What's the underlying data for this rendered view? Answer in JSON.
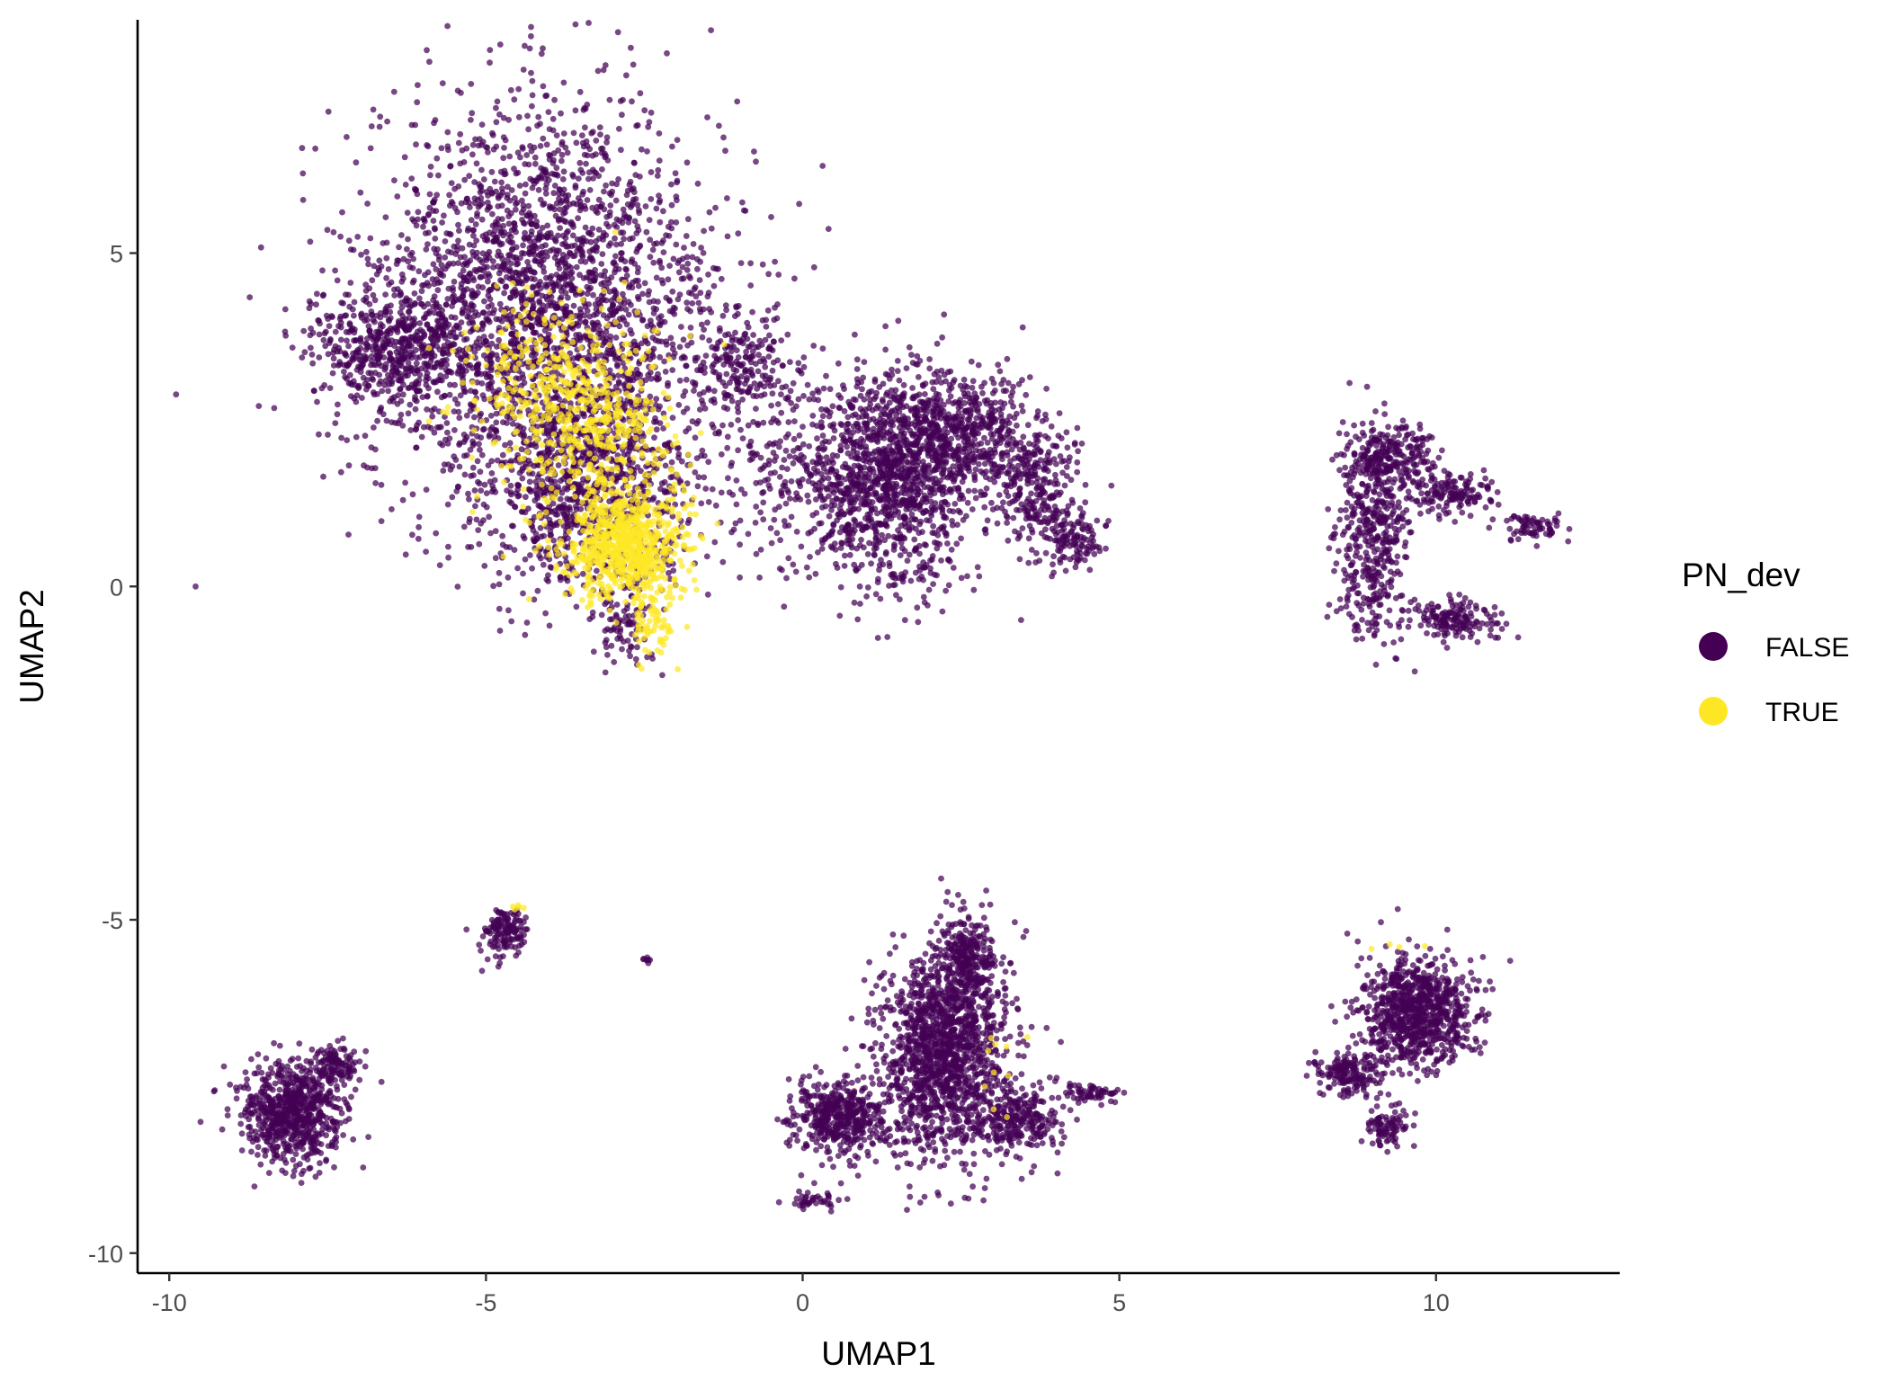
{
  "chart_data": {
    "type": "scatter",
    "title": "",
    "xlabel": "UMAP1",
    "ylabel": "UMAP2",
    "xlim": [
      -10.5,
      12.9
    ],
    "ylim": [
      -10.3,
      8.5
    ],
    "x_ticks": [
      -10,
      -5,
      0,
      5,
      10
    ],
    "x_tick_labels": [
      "-10",
      "-5",
      "0",
      "5",
      "10"
    ],
    "y_ticks": [
      -10,
      -5,
      0,
      5
    ],
    "y_tick_labels": [
      "-10",
      "-5",
      "0",
      "5"
    ],
    "grid": false,
    "legend": {
      "title": "PN_dev",
      "position": "right",
      "entries": [
        {
          "label": "FALSE",
          "color": "#440154"
        },
        {
          "label": "TRUE",
          "color": "#FDE725"
        }
      ]
    },
    "series": [
      {
        "name": "FALSE",
        "color": "#440154",
        "clusters": [
          {
            "cx": -4.1,
            "cy": 4.2,
            "rx": 2.8,
            "ry": 3.0,
            "n": 2600
          },
          {
            "cx": -6.5,
            "cy": 3.6,
            "rx": 1.2,
            "ry": 0.9,
            "n": 500
          },
          {
            "cx": -3.3,
            "cy": 1.5,
            "rx": 1.7,
            "ry": 1.5,
            "n": 900
          },
          {
            "cx": -2.8,
            "cy": -0.6,
            "rx": 0.5,
            "ry": 0.7,
            "n": 80
          },
          {
            "cx": -1.0,
            "cy": 3.3,
            "rx": 0.8,
            "ry": 0.7,
            "n": 200
          },
          {
            "cx": -0.3,
            "cy": 1.8,
            "rx": 1.0,
            "ry": 1.4,
            "n": 180
          },
          {
            "cx": 1.4,
            "cy": 1.6,
            "rx": 1.3,
            "ry": 1.6,
            "n": 1200
          },
          {
            "cx": 2.5,
            "cy": 2.3,
            "rx": 1.3,
            "ry": 0.9,
            "n": 500
          },
          {
            "cx": 3.6,
            "cy": 1.5,
            "rx": 0.7,
            "ry": 0.9,
            "n": 250
          },
          {
            "cx": 4.3,
            "cy": 0.7,
            "rx": 0.5,
            "ry": 0.4,
            "n": 120
          },
          {
            "cx": 9.0,
            "cy": 0.8,
            "rx": 0.6,
            "ry": 1.5,
            "n": 450
          },
          {
            "cx": 9.3,
            "cy": 2.0,
            "rx": 0.7,
            "ry": 0.4,
            "n": 200
          },
          {
            "cx": 10.2,
            "cy": 1.4,
            "rx": 0.7,
            "ry": 0.3,
            "n": 150
          },
          {
            "cx": 10.3,
            "cy": -0.5,
            "rx": 0.6,
            "ry": 0.3,
            "n": 150
          },
          {
            "cx": 11.5,
            "cy": 0.9,
            "rx": 0.6,
            "ry": 0.2,
            "n": 70
          },
          {
            "cx": -4.7,
            "cy": -5.2,
            "rx": 0.4,
            "ry": 0.35,
            "n": 140
          },
          {
            "cx": -2.45,
            "cy": -5.6,
            "rx": 0.1,
            "ry": 0.05,
            "n": 8
          },
          {
            "cx": -8.1,
            "cy": -7.9,
            "rx": 0.8,
            "ry": 0.75,
            "n": 700
          },
          {
            "cx": -7.4,
            "cy": -7.2,
            "rx": 0.4,
            "ry": 0.3,
            "n": 120
          },
          {
            "cx": 2.2,
            "cy": -7.0,
            "rx": 1.0,
            "ry": 1.6,
            "n": 1400
          },
          {
            "cx": 2.6,
            "cy": -5.6,
            "rx": 0.4,
            "ry": 0.7,
            "n": 250
          },
          {
            "cx": 0.6,
            "cy": -8.0,
            "rx": 0.8,
            "ry": 0.6,
            "n": 450
          },
          {
            "cx": 3.4,
            "cy": -8.0,
            "rx": 0.7,
            "ry": 0.5,
            "n": 250
          },
          {
            "cx": 4.6,
            "cy": -7.6,
            "rx": 0.5,
            "ry": 0.15,
            "n": 60
          },
          {
            "cx": 0.2,
            "cy": -9.2,
            "rx": 0.4,
            "ry": 0.15,
            "n": 40
          },
          {
            "cx": 9.7,
            "cy": -6.4,
            "rx": 0.9,
            "ry": 0.8,
            "n": 850
          },
          {
            "cx": 8.6,
            "cy": -7.3,
            "rx": 0.5,
            "ry": 0.3,
            "n": 160
          },
          {
            "cx": 9.2,
            "cy": -8.1,
            "rx": 0.3,
            "ry": 0.3,
            "n": 90
          }
        ]
      },
      {
        "name": "TRUE",
        "color": "#FDE725",
        "clusters": [
          {
            "cx": -2.8,
            "cy": 0.6,
            "rx": 0.9,
            "ry": 0.75,
            "n": 700
          },
          {
            "cx": -3.3,
            "cy": 2.3,
            "rx": 1.3,
            "ry": 1.6,
            "n": 500
          },
          {
            "cx": -2.4,
            "cy": -0.6,
            "rx": 0.4,
            "ry": 0.45,
            "n": 70
          },
          {
            "cx": -4.4,
            "cy": 3.2,
            "rx": 1.2,
            "ry": 1.3,
            "n": 160
          },
          {
            "cx": -4.5,
            "cy": -4.8,
            "rx": 0.15,
            "ry": 0.06,
            "n": 5
          },
          {
            "cx": 3.2,
            "cy": -7.3,
            "rx": 0.4,
            "ry": 0.8,
            "n": 10
          },
          {
            "cx": 9.4,
            "cy": -5.4,
            "rx": 0.5,
            "ry": 0.05,
            "n": 4
          }
        ]
      }
    ]
  }
}
